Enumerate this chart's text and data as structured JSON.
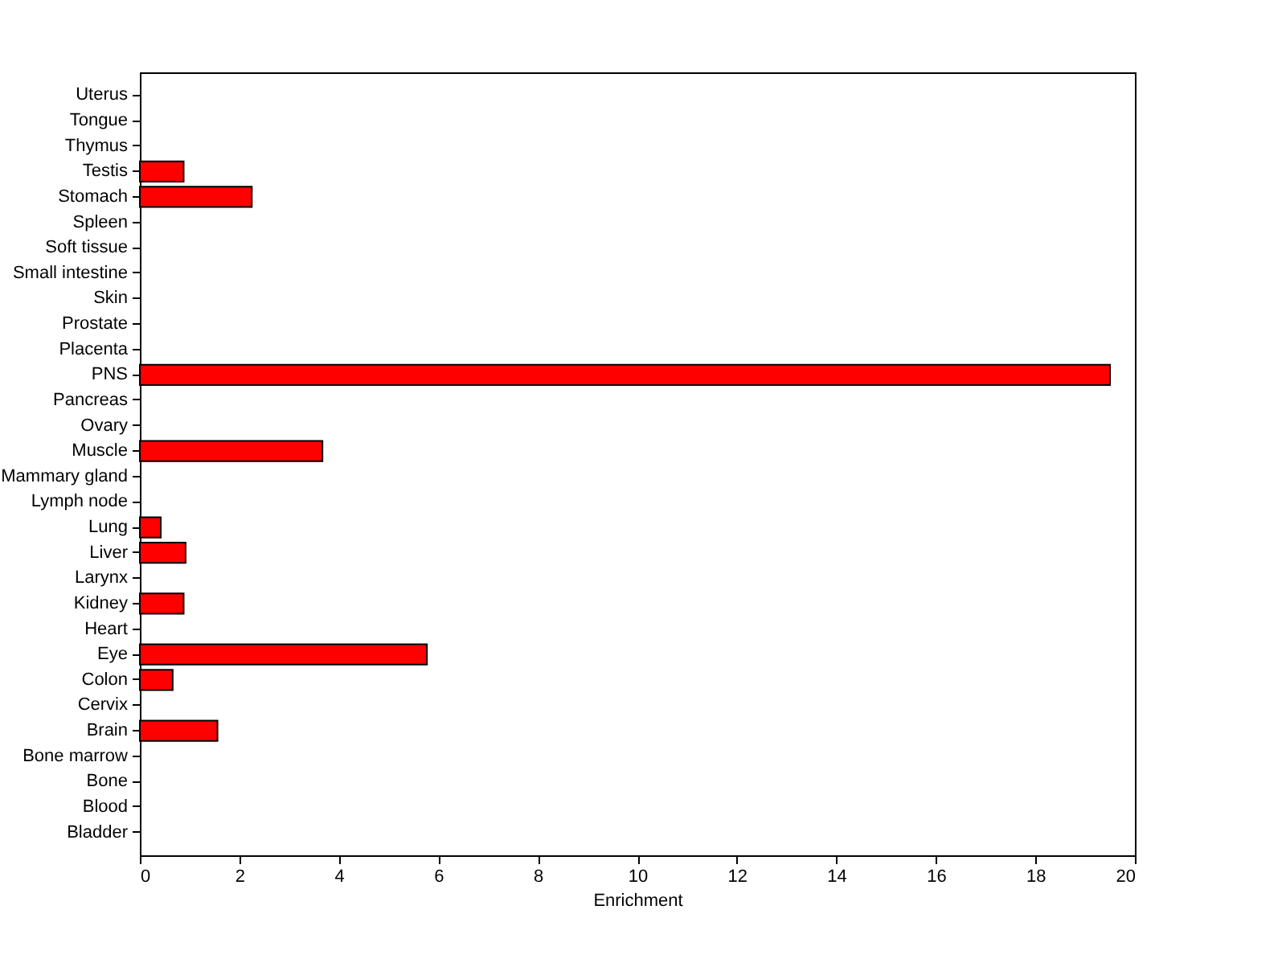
{
  "chart_data": {
    "type": "bar",
    "orientation": "horizontal",
    "xlabel": "Enrichment",
    "categories": [
      "Uterus",
      "Tongue",
      "Thymus",
      "Testis",
      "Stomach",
      "Spleen",
      "Soft tissue",
      "Small intestine",
      "Skin",
      "Prostate",
      "Placenta",
      "PNS",
      "Pancreas",
      "Ovary",
      "Muscle",
      "Mammary gland",
      "Lymph node",
      "Lung",
      "Liver",
      "Larynx",
      "Kidney",
      "Heart",
      "Eye",
      "Colon",
      "Cervix",
      "Brain",
      "Bone marrow",
      "Bone",
      "Blood",
      "Bladder"
    ],
    "values": [
      0,
      0,
      0,
      0.88,
      2.25,
      0,
      0,
      0,
      0,
      0,
      0,
      19.5,
      0,
      0,
      3.67,
      0,
      0,
      0.42,
      0.92,
      0,
      0.88,
      0,
      5.77,
      0.66,
      0,
      1.56,
      0,
      0,
      0,
      0
    ],
    "color": "#ff0000",
    "xlim": [
      0,
      20
    ],
    "xticks": [
      0,
      2,
      4,
      6,
      8,
      10,
      12,
      14,
      16,
      18,
      20
    ],
    "grid": false
  }
}
